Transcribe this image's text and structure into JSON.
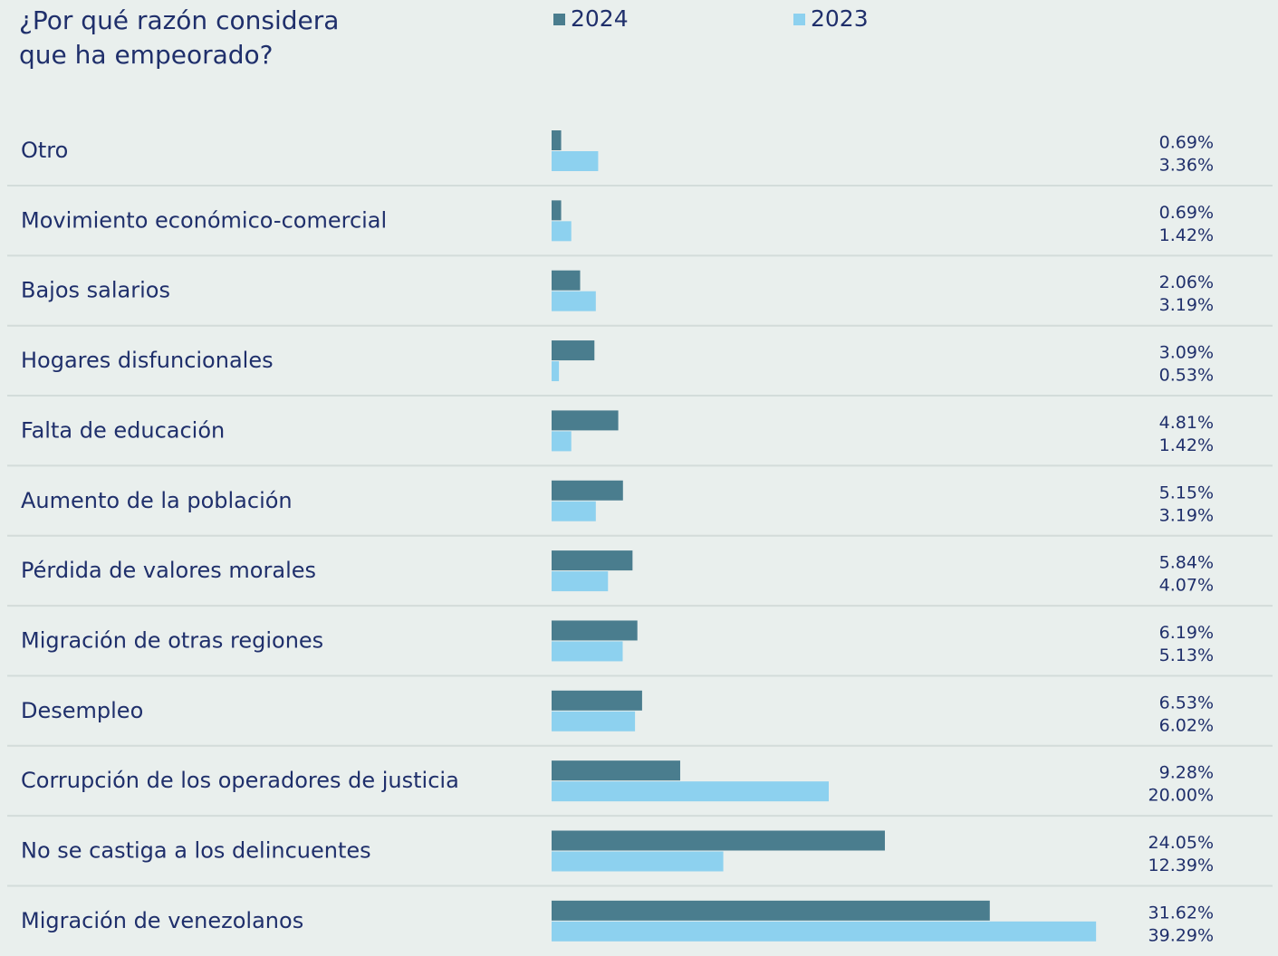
{
  "chart_data": {
    "type": "hbar",
    "title": "¿Por qué razón considera\nque ha empeorado?",
    "categories": [
      "Otro",
      "Movimiento económico-comercial",
      "Bajos salarios",
      "Hogares disfuncionales",
      "Falta de educación",
      "Aumento de la población",
      "Pérdida de valores morales",
      "Migración de otras regiones",
      "Desempleo",
      "Corrupción de los operadores de justicia",
      "No se castiga a los delincuentes",
      "Migración de venezolanos"
    ],
    "series": [
      {
        "name": "2024",
        "color": "#4a7d8e",
        "values": [
          0.69,
          0.69,
          2.06,
          3.09,
          4.81,
          5.15,
          5.84,
          6.19,
          6.53,
          9.28,
          24.05,
          31.62
        ],
        "value_labels": [
          "0.69%",
          "0.69%",
          "2.06%",
          "3.09%",
          "4.81%",
          "5.15%",
          "5.84%",
          "6.19%",
          "6.53%",
          "9.28%",
          "24.05%",
          "31.62%"
        ]
      },
      {
        "name": "2023",
        "color": "#8dd1ef",
        "values": [
          3.36,
          1.42,
          3.19,
          0.53,
          1.42,
          3.19,
          4.07,
          5.13,
          6.02,
          20.0,
          12.39,
          39.29
        ],
        "value_labels": [
          "3.36%",
          "1.42%",
          "3.19%",
          "0.53%",
          "1.42%",
          "3.19%",
          "4.07%",
          "5.13%",
          "6.02%",
          "20.00%",
          "12.39%",
          "39.29%"
        ]
      }
    ]
  }
}
